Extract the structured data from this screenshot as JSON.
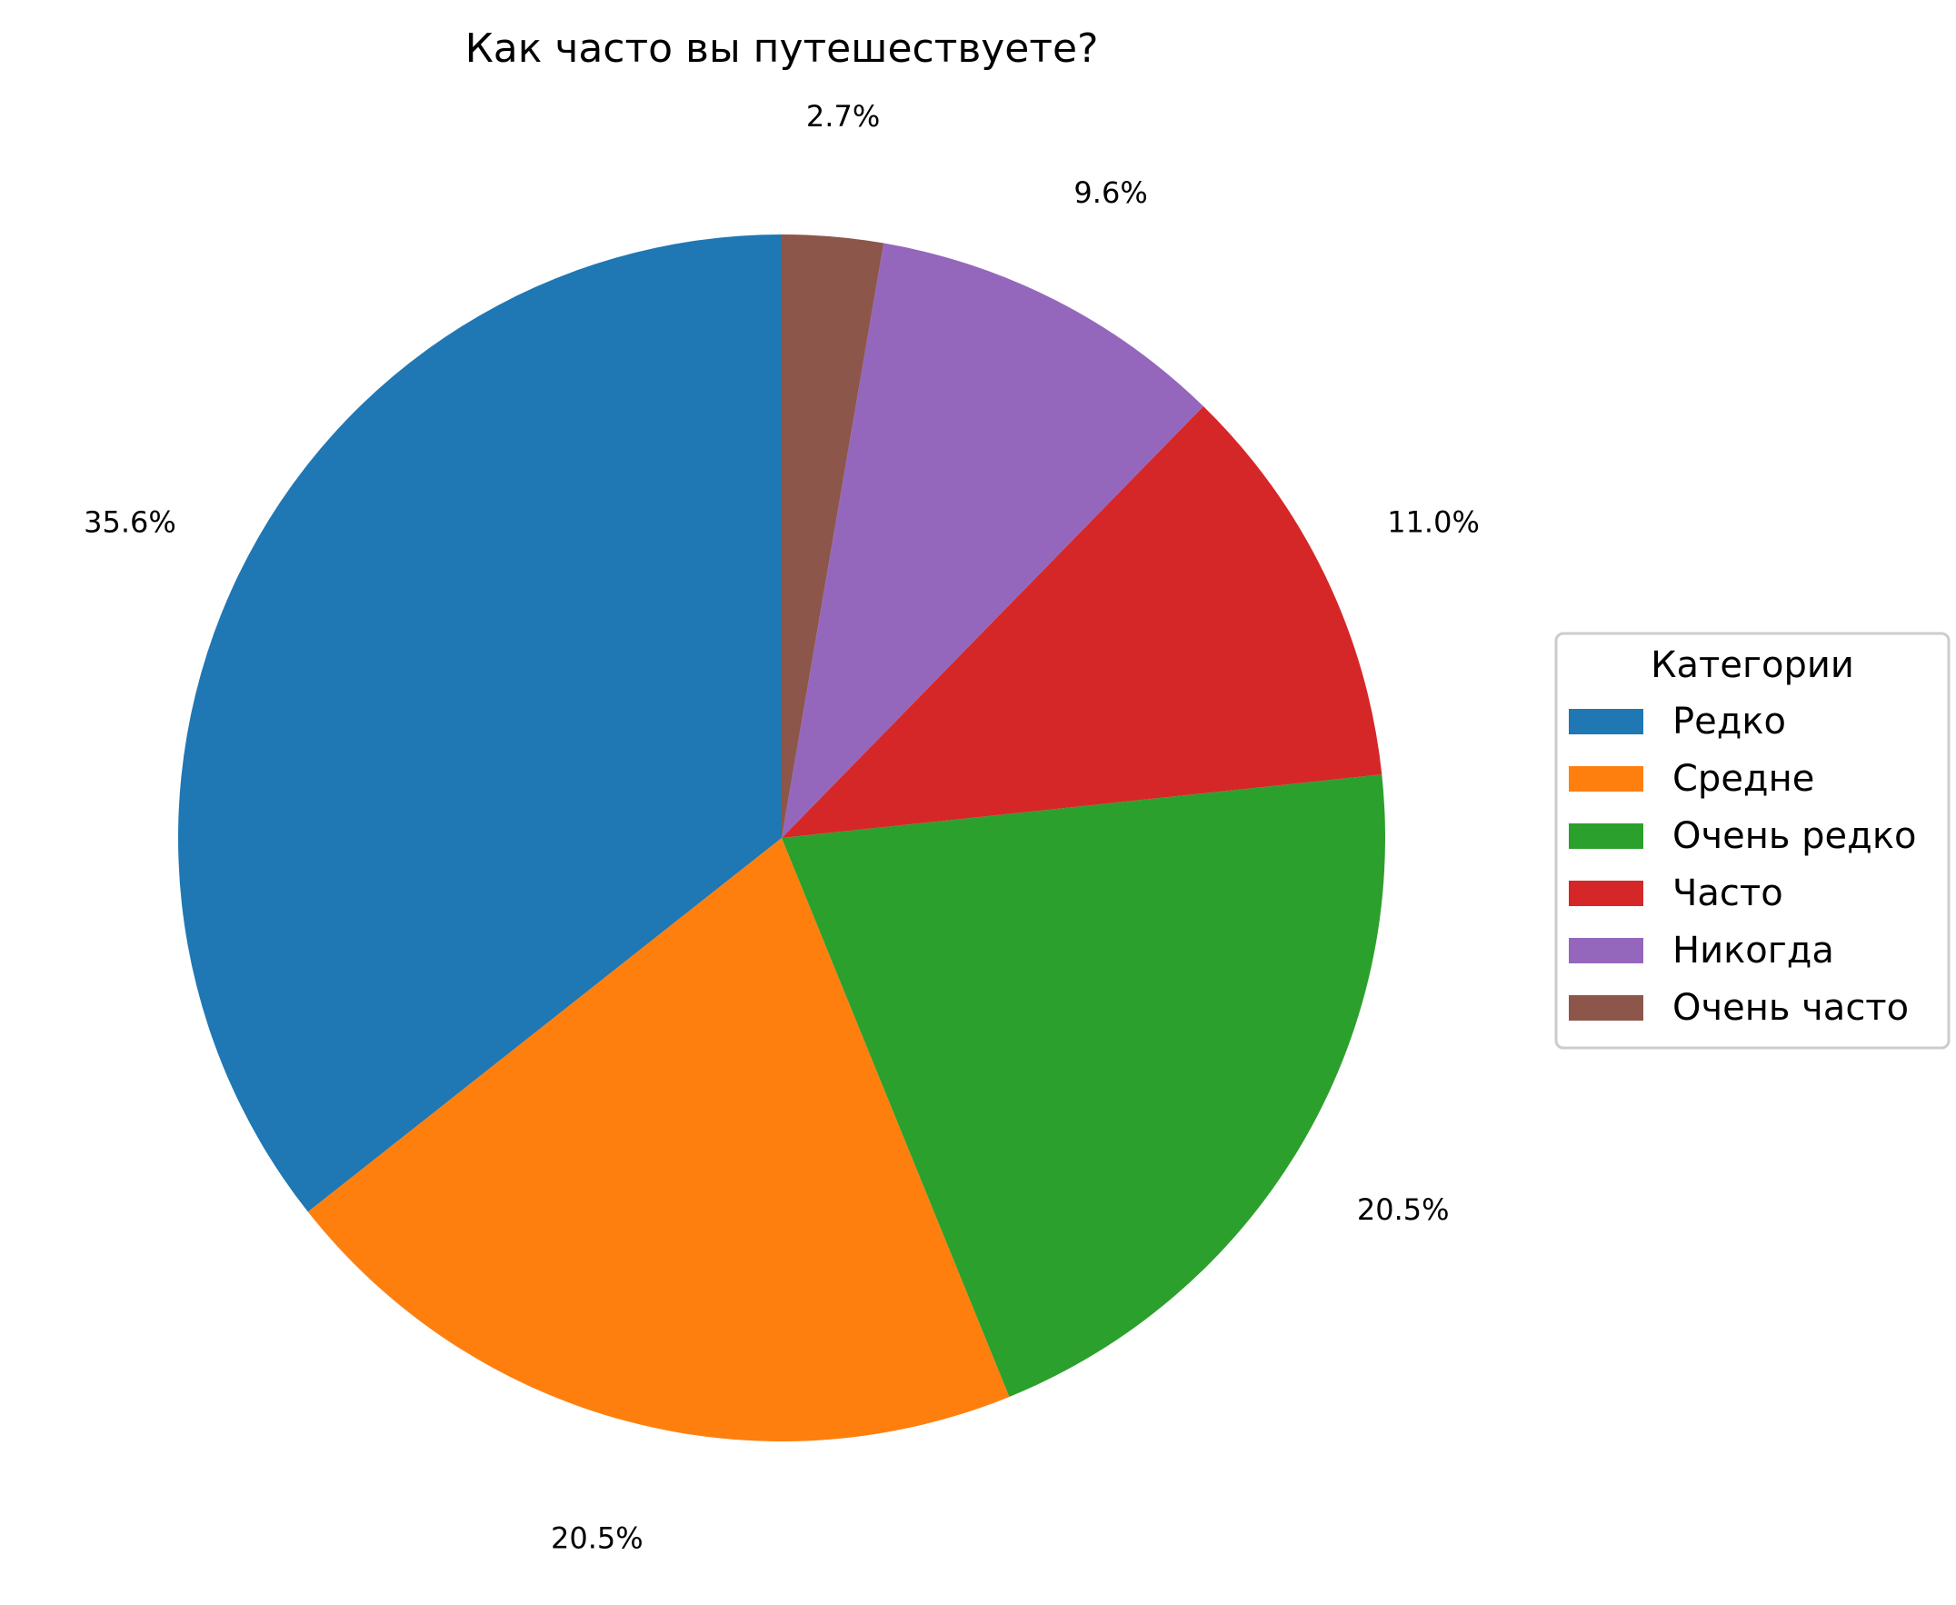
{
  "chart_data": {
    "type": "pie",
    "title": "Как часто вы путешествуете?",
    "legend_title": "Категории",
    "legend_placement": "center-right",
    "start_angle_deg": 90,
    "direction": "counterclockwise",
    "slices": [
      {
        "label": "Редко",
        "value": 35.6,
        "pct_label": "35.6%",
        "color": "#1f77b4"
      },
      {
        "label": "Средне",
        "value": 20.5,
        "pct_label": "20.5%",
        "color": "#ff7f0e"
      },
      {
        "label": "Очень редко",
        "value": 20.5,
        "pct_label": "20.5%",
        "color": "#2ca02c"
      },
      {
        "label": "Часто",
        "value": 11.0,
        "pct_label": "11.0%",
        "color": "#d62728"
      },
      {
        "label": "Никогда",
        "value": 9.6,
        "pct_label": "9.6%",
        "color": "#9467bd"
      },
      {
        "label": "Очень часто",
        "value": 2.7,
        "pct_label": "2.7%",
        "color": "#8c564b"
      }
    ]
  }
}
